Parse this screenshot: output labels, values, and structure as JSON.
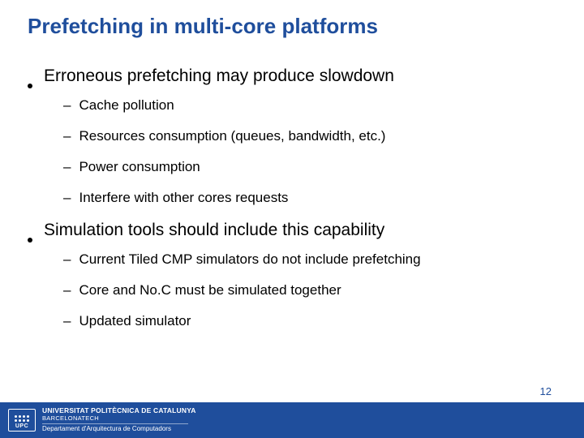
{
  "title": "Prefetching in multi-core platforms",
  "bullets": [
    {
      "text": "Erroneous prefetching may produce slowdown",
      "sub": [
        "Cache pollution",
        "Resources consumption (queues, bandwidth, etc.)",
        "Power consumption",
        "Interfere with other cores requests"
      ]
    },
    {
      "text": "Simulation tools should include this capability",
      "sub": [
        "Current Tiled CMP simulators do not include prefetching",
        "Core and No.C must be simulated together",
        "Updated simulator"
      ]
    }
  ],
  "footer": {
    "logo_label": "UPC",
    "university": "UNIVERSITAT POLITÈCNICA DE CATALUNYA",
    "barcelonatech": "BARCELONATECH",
    "department": "Departament d'Arquitectura de Computadors"
  },
  "page_number": "12",
  "colors": {
    "accent": "#1f4e9c",
    "text": "#000000",
    "footer_text": "#ffffff",
    "background": "#ffffff"
  }
}
